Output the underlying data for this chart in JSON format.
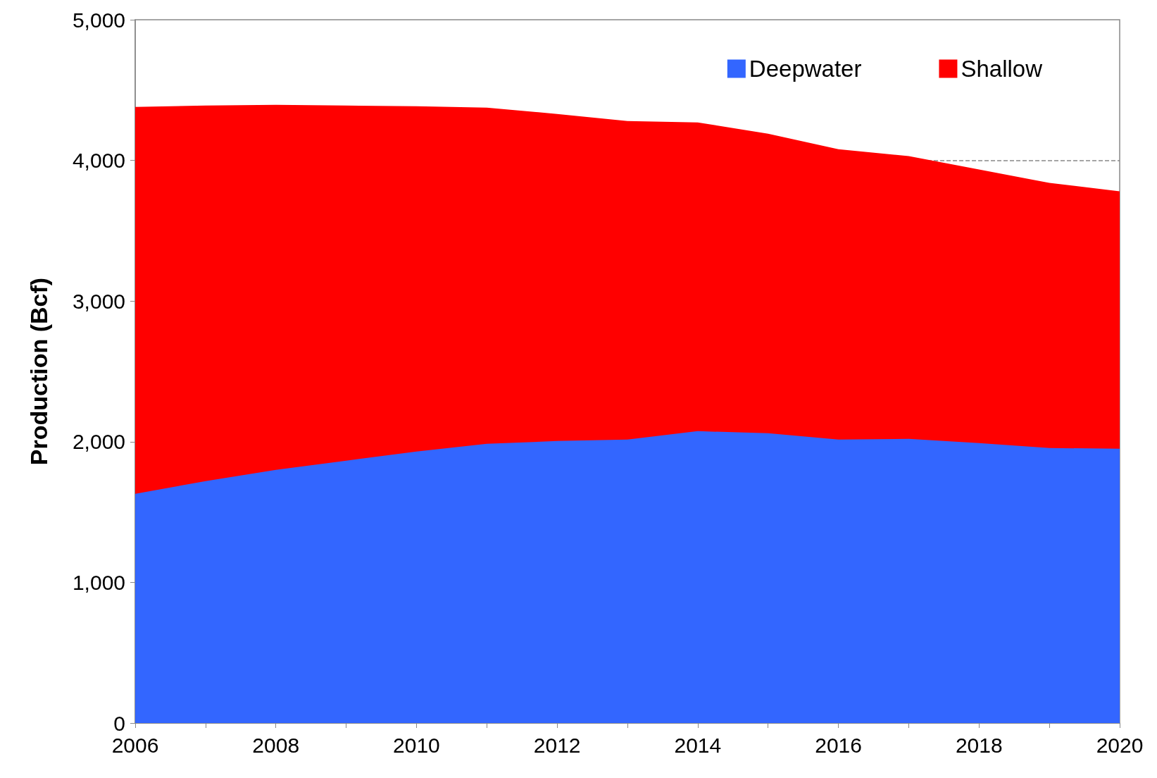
{
  "chart_data": {
    "type": "area",
    "stacked": true,
    "ylabel": "Production (Bcf)",
    "x": [
      2006,
      2007,
      2008,
      2009,
      2010,
      2011,
      2012,
      2013,
      2014,
      2015,
      2016,
      2017,
      2018,
      2019,
      2020
    ],
    "series": [
      {
        "name": "Deepwater",
        "color": "#3366ff",
        "values": [
          1630,
          1720,
          1800,
          1865,
          1930,
          1985,
          2005,
          2015,
          2075,
          2060,
          2015,
          2020,
          1990,
          1955,
          1950
        ]
      },
      {
        "name": "Shallow",
        "color": "#ff0000",
        "values": [
          2750,
          2670,
          2595,
          2525,
          2455,
          2390,
          2325,
          2265,
          2195,
          2130,
          2065,
          2010,
          1945,
          1885,
          1830
        ]
      }
    ],
    "xlim": [
      2006,
      2020
    ],
    "xticks": [
      2006,
      {
        "value": 2007,
        "label": null
      },
      2008,
      {
        "value": 2009,
        "label": null
      },
      2010,
      {
        "value": 2011,
        "label": null
      },
      2012,
      {
        "value": 2013,
        "label": null
      },
      2014,
      {
        "value": 2015,
        "label": null
      },
      2016,
      {
        "value": 2017,
        "label": null
      },
      2018,
      {
        "value": 2019,
        "label": null
      },
      2020
    ],
    "ylim": [
      0,
      5000
    ],
    "yticks": [
      0,
      {
        "value": 1000,
        "label": "1,000"
      },
      {
        "value": 2000,
        "label": "2,000"
      },
      {
        "value": 3000,
        "label": "3,000"
      },
      {
        "value": 4000,
        "label": "4,000"
      },
      {
        "value": 5000,
        "label": "5,000"
      }
    ],
    "ref_lines": [
      {
        "axis": "y",
        "value": 4000,
        "color": "#888888",
        "line_style": "dashed"
      }
    ],
    "legend": "top right",
    "grid": false
  }
}
